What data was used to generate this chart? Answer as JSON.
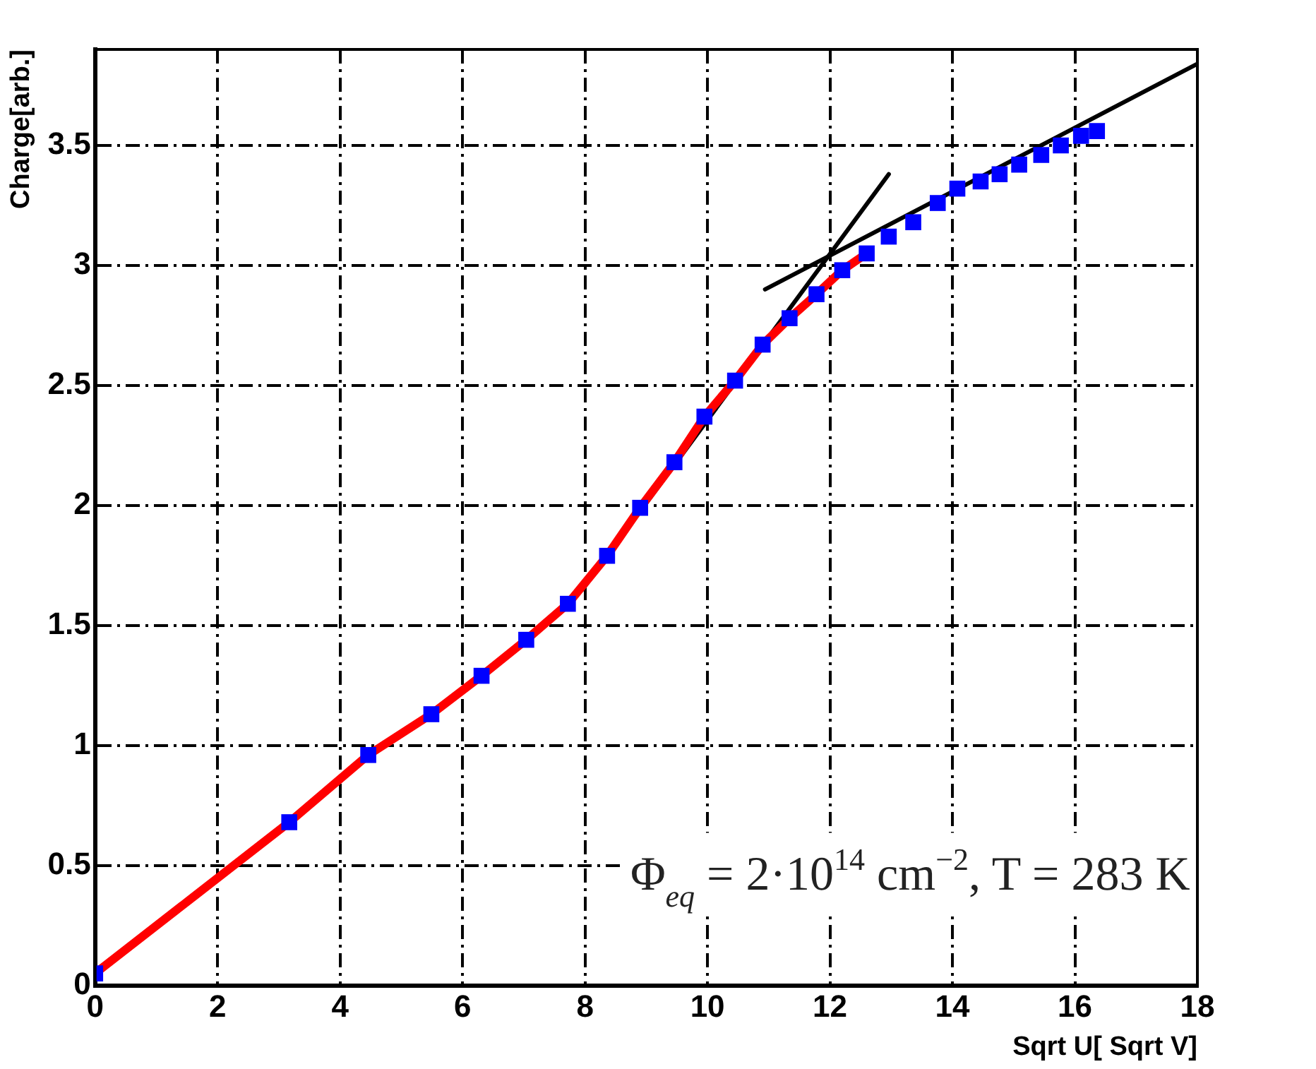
{
  "chart_data": {
    "type": "scatter",
    "xlabel": "Sqrt U[ Sqrt V]",
    "ylabel": "Charge[arb.]",
    "xlim": [
      0,
      18
    ],
    "xticks": [
      0,
      2,
      4,
      6,
      8,
      10,
      12,
      14,
      16,
      18
    ],
    "ylim": [
      0,
      3.9
    ],
    "yticks": [
      0,
      0.5,
      1,
      1.5,
      2,
      2.5,
      3,
      3.5
    ],
    "grid": true,
    "legend": false,
    "marker": "square",
    "annotations": [
      "Φ$_{eq}$ = 2·10$^{14}$ cm$^{−2}$, T = 283 K"
    ],
    "series": [
      {
        "type": "line",
        "color": "#ff0000",
        "marker": "none",
        "x": [
          0,
          3.17,
          4.46,
          5.49,
          6.31,
          7.04,
          7.72,
          8.36,
          8.9,
          9.46,
          9.95,
          10.45,
          10.9,
          11.34,
          11.78,
          12.2,
          12.6
        ],
        "values": [
          0.05,
          0.68,
          0.96,
          1.13,
          1.29,
          1.44,
          1.59,
          1.79,
          1.99,
          2.18,
          2.37,
          2.52,
          2.67,
          2.78,
          2.88,
          2.98,
          3.05
        ]
      },
      {
        "type": "line",
        "color": "#000000",
        "marker": "none",
        "x": [
          7.96,
          12.96
        ],
        "values": [
          1.65,
          3.38
        ]
      },
      {
        "type": "line",
        "color": "#000000",
        "marker": "none",
        "x": [
          10.94,
          18
        ],
        "values": [
          2.9,
          3.84
        ]
      },
      {
        "type": "scatter",
        "color": "#0000ff",
        "x": [
          0,
          3.17,
          4.46,
          5.49,
          6.31,
          7.04,
          7.72,
          8.36,
          8.9,
          9.46,
          9.95,
          10.45,
          10.9,
          11.34,
          11.78,
          12.2,
          12.6,
          12.96,
          13.36,
          13.76,
          14.08,
          14.46,
          14.77,
          15.09,
          15.45,
          15.77,
          16.1,
          16.36
        ],
        "values": [
          0.05,
          0.68,
          0.96,
          1.13,
          1.29,
          1.44,
          1.59,
          1.79,
          1.99,
          2.18,
          2.37,
          2.52,
          2.67,
          2.78,
          2.88,
          2.98,
          3.05,
          3.12,
          3.18,
          3.26,
          3.32,
          3.35,
          3.38,
          3.42,
          3.46,
          3.5,
          3.54,
          3.56
        ]
      }
    ]
  }
}
